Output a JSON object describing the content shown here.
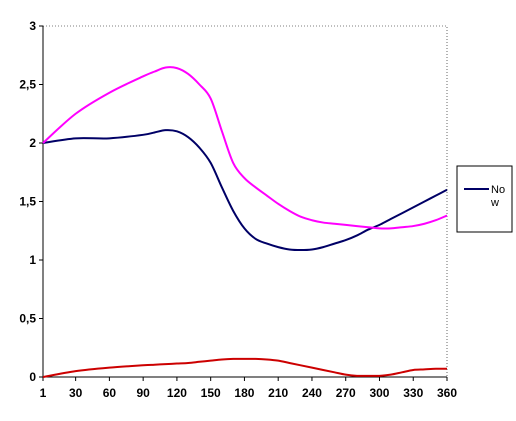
{
  "chart_data": {
    "type": "line",
    "title": "",
    "xlabel": "",
    "ylabel": "",
    "x": [
      1,
      30,
      60,
      90,
      100,
      110,
      120,
      130,
      140,
      150,
      160,
      170,
      180,
      190,
      200,
      210,
      220,
      230,
      240,
      250,
      260,
      270,
      280,
      290,
      300,
      310,
      320,
      330,
      340,
      350,
      360
    ],
    "x_ticks": [
      "1",
      "30",
      "60",
      "90",
      "120",
      "150",
      "180",
      "210",
      "240",
      "270",
      "300",
      "330",
      "360"
    ],
    "x_tick_values": [
      1,
      30,
      60,
      90,
      120,
      150,
      180,
      210,
      240,
      270,
      300,
      330,
      360
    ],
    "xlim": [
      1,
      360
    ],
    "y_ticks": [
      "0",
      "0,5",
      "1",
      "1,5",
      "2",
      "2,5",
      "3"
    ],
    "y_tick_values": [
      0,
      0.5,
      1,
      1.5,
      2,
      2.5,
      3
    ],
    "ylim": [
      0,
      3
    ],
    "series": [
      {
        "name": "Now",
        "color": "#000066",
        "values": [
          2.0,
          2.04,
          2.04,
          2.07,
          2.09,
          2.11,
          2.1,
          2.05,
          1.96,
          1.83,
          1.62,
          1.42,
          1.27,
          1.18,
          1.14,
          1.11,
          1.09,
          1.085,
          1.09,
          1.11,
          1.14,
          1.17,
          1.21,
          1.26,
          1.3,
          1.35,
          1.4,
          1.45,
          1.5,
          1.55,
          1.6
        ]
      },
      {
        "color": "#ff00ff",
        "values": [
          2.0,
          2.25,
          2.43,
          2.57,
          2.61,
          2.645,
          2.64,
          2.59,
          2.5,
          2.38,
          2.1,
          1.83,
          1.7,
          1.62,
          1.55,
          1.48,
          1.42,
          1.37,
          1.34,
          1.32,
          1.31,
          1.3,
          1.29,
          1.28,
          1.27,
          1.27,
          1.28,
          1.29,
          1.31,
          1.34,
          1.38
        ]
      },
      {
        "color": "#cc0000",
        "values": [
          0.0,
          0.05,
          0.08,
          0.1,
          0.105,
          0.11,
          0.115,
          0.12,
          0.13,
          0.14,
          0.15,
          0.155,
          0.155,
          0.155,
          0.15,
          0.14,
          0.12,
          0.1,
          0.08,
          0.06,
          0.04,
          0.02,
          0.01,
          0.01,
          0.01,
          0.02,
          0.04,
          0.06,
          0.065,
          0.07,
          0.07
        ]
      }
    ],
    "legend_position": "right",
    "legend_label_lines": [
      "No",
      "w"
    ],
    "grid": false
  }
}
